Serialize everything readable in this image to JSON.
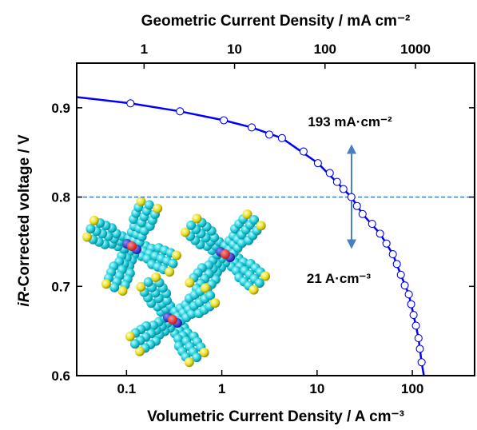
{
  "chart_data": {
    "type": "scatter",
    "x2label": "Geometric Current Density / mA cm⁻²",
    "xlabel": "Volumetric Current Density / A cm⁻³",
    "ylabel": {
      "italic": "iR",
      "text": "-Corrected voltage / V"
    },
    "xscale": "log",
    "xlim": [
      0.03,
      450
    ],
    "xticks": [
      0.1,
      1,
      10,
      100
    ],
    "x2lim": [
      0.18,
      4500
    ],
    "x2ticks": [
      1,
      10,
      100,
      1000
    ],
    "ylim": [
      0.6,
      0.95
    ],
    "yticks": [
      0.6,
      0.7,
      0.8,
      0.9
    ],
    "series": [
      {
        "type": "line",
        "color": "#0000ff",
        "x": [
          0.03,
          0.11,
          0.364,
          1.05,
          2.06,
          4.28,
          10.2,
          18.9,
          22.9,
          30,
          45.8,
          62.4,
          75.7,
          91.7,
          103,
          116,
          125,
          132
        ],
        "values": [
          0.912,
          0.905,
          0.896,
          0.886,
          0.878,
          0.866,
          0.838,
          0.809,
          0.8,
          0.781,
          0.759,
          0.736,
          0.713,
          0.691,
          0.668,
          0.642,
          0.615,
          0.6
        ]
      },
      {
        "type": "scatter",
        "color": "#0000ff",
        "x": [
          0.11,
          0.364,
          1.05,
          2.06,
          3.15,
          4.28,
          7.21,
          10.2,
          13.6,
          16.2,
          18.9,
          22.9,
          26.2,
          30,
          37.8,
          45.8,
          53.5,
          62.4,
          68.7,
          75.7,
          83.2,
          91.7,
          97.1,
          103,
          109,
          116,
          120,
          125
        ],
        "values": [
          0.905,
          0.896,
          0.886,
          0.878,
          0.87,
          0.866,
          0.851,
          0.838,
          0.827,
          0.817,
          0.809,
          0.8,
          0.79,
          0.781,
          0.77,
          0.759,
          0.748,
          0.736,
          0.725,
          0.713,
          0.701,
          0.691,
          0.68,
          0.668,
          0.656,
          0.642,
          0.63,
          0.615
        ]
      }
    ],
    "hline": {
      "y": 0.8,
      "color": "#3a6fb0"
    },
    "arrow": {
      "x": 23,
      "y": [
        0.744,
        0.857
      ],
      "color": "#4a7fbf"
    },
    "annotations": [
      "193 mA·cm⁻²",
      "21 A·cm⁻³"
    ]
  }
}
